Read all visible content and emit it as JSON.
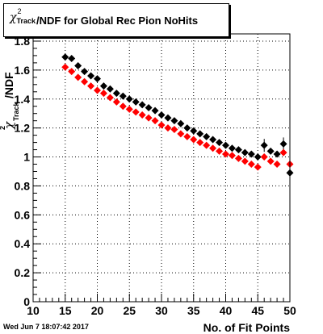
{
  "title": {
    "symbol": "χ",
    "symbol_sup": "2",
    "symbol_sub": "Track",
    "text": "/NDF for Global Rec Pion NoHits"
  },
  "footer": {
    "timestamp": "Wed Jun  7 18:07:42 2017"
  },
  "colors": {
    "series_black": "#000000",
    "series_red": "#ff0000",
    "background": "#ffffff"
  },
  "chart_data": {
    "type": "scatter",
    "title": "χ²Track/NDF for Global Rec Pion NoHits",
    "xlabel": "No. of Fit Points",
    "ylabel": "χ²Track/NDF",
    "xlim": [
      10,
      50
    ],
    "ylim": [
      0,
      1.85
    ],
    "grid": true,
    "x_ticks": [
      "10",
      "15",
      "20",
      "25",
      "30",
      "35",
      "40",
      "45",
      "50"
    ],
    "y_ticks": [
      "0",
      "0.2",
      "0.4",
      "0.6",
      "0.8",
      "1",
      "1.2",
      "1.4",
      "1.6",
      "1.8"
    ],
    "series": [
      {
        "color": "#000000",
        "x": [
          15,
          16,
          17,
          18,
          19,
          20,
          21,
          22,
          23,
          24,
          25,
          26,
          27,
          28,
          29,
          30,
          31,
          32,
          33,
          34,
          35,
          36,
          37,
          38,
          39,
          40,
          41,
          42,
          43,
          44,
          45,
          46,
          47,
          48,
          49,
          50
        ],
        "y": [
          1.69,
          1.68,
          1.63,
          1.59,
          1.56,
          1.54,
          1.49,
          1.47,
          1.44,
          1.42,
          1.4,
          1.38,
          1.36,
          1.34,
          1.32,
          1.29,
          1.27,
          1.25,
          1.23,
          1.2,
          1.18,
          1.16,
          1.14,
          1.12,
          1.1,
          1.08,
          1.06,
          1.05,
          1.03,
          1.02,
          1.0,
          1.08,
          1.04,
          1.02,
          1.09,
          0.89
        ]
      },
      {
        "color": "#ff0000",
        "x": [
          15,
          16,
          17,
          18,
          19,
          20,
          21,
          22,
          23,
          24,
          25,
          26,
          27,
          28,
          29,
          30,
          31,
          32,
          33,
          34,
          35,
          36,
          37,
          38,
          39,
          40,
          41,
          42,
          43,
          44,
          45,
          46,
          47,
          48,
          49,
          50
        ],
        "y": [
          1.62,
          1.59,
          1.55,
          1.52,
          1.49,
          1.46,
          1.44,
          1.41,
          1.38,
          1.35,
          1.33,
          1.31,
          1.29,
          1.27,
          1.25,
          1.22,
          1.2,
          1.19,
          1.16,
          1.14,
          1.12,
          1.1,
          1.08,
          1.06,
          1.04,
          1.02,
          1.01,
          0.99,
          0.97,
          0.95,
          0.93,
          1.0,
          0.97,
          0.95,
          1.03,
          0.95
        ]
      }
    ]
  }
}
